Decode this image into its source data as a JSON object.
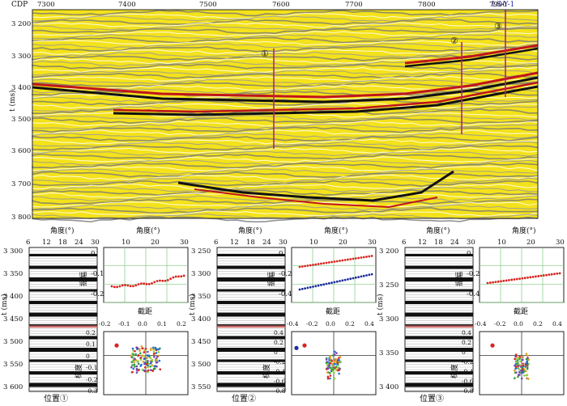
{
  "seismic": {
    "cdp_label": "CDP",
    "cdp_ticks": [
      "7300",
      "7400",
      "7500",
      "7600",
      "7700",
      "7800",
      "7900"
    ],
    "well_label": "LS-Y-1",
    "time_axis_label": "t (ms)",
    "time_ticks": [
      "3 200",
      "3 300",
      "3 400",
      "3 500",
      "3 600",
      "3 700",
      "3 800"
    ],
    "markers": [
      "①",
      "②",
      "③"
    ]
  },
  "panels": [
    {
      "caption": "位置①",
      "gather": {
        "angle_label": "角度(°)",
        "angle_ticks": [
          "6",
          "12",
          "18",
          "24",
          "30"
        ],
        "time_label": "t (ms)",
        "time_ticks": [
          "3 300",
          "3 350",
          "3 400",
          "3 450",
          "3 500",
          "3 550",
          "3 600"
        ]
      },
      "avo": {
        "angle_label": "角度(°)",
        "angle_ticks": [
          "10",
          "20",
          "30"
        ],
        "amp_label": "振幅",
        "amp_ticks": [
          "0",
          "-0.1",
          "-0.2"
        ]
      },
      "cross": {
        "intercept_label": "截距",
        "x_ticks": [
          "-0.2",
          "-0.1",
          "0.0",
          "0.1",
          "0.2"
        ],
        "gradient_label": "梯度",
        "y_ticks": [
          "0.2",
          "0.1",
          "0",
          "-0.1",
          "-0.2",
          "-0.3"
        ]
      }
    },
    {
      "caption": "位置②",
      "gather": {
        "angle_label": "角度(°)",
        "angle_ticks": [
          "6",
          "12",
          "18",
          "24",
          "30"
        ],
        "time_label": "t (ms)",
        "time_ticks": [
          "3 250",
          "3 300",
          "3 350",
          "3 400",
          "3 450",
          "3 500",
          "3 550"
        ]
      },
      "avo": {
        "angle_label": "角度(°)",
        "angle_ticks": [
          "10",
          "20",
          "30"
        ],
        "amp_label": "振幅",
        "amp_ticks": [
          "0",
          "-0.2",
          "-0.4"
        ]
      },
      "cross": {
        "intercept_label": "截距",
        "x_ticks": [
          "-0.4",
          "-0.2",
          "0.0",
          "0.2",
          "0.4"
        ],
        "gradient_label": "梯度",
        "y_ticks": [
          "0.4",
          "0.2",
          "0",
          "-0.2",
          "-0.4",
          "-0.6",
          "-0.8"
        ]
      }
    },
    {
      "caption": "位置③",
      "gather": {
        "angle_label": "角度(°)",
        "angle_ticks": [
          "6",
          "12",
          "18",
          "24",
          "30"
        ],
        "time_label": "t (ms)",
        "time_ticks": [
          "3 200",
          "3 250",
          "3 300",
          "3 350",
          "3 400"
        ]
      },
      "avo": {
        "angle_label": "角度(°)",
        "angle_ticks": [
          "10",
          "20",
          "30"
        ],
        "amp_label": "振幅",
        "amp_ticks": [
          "0",
          "-0.2",
          "-0.4"
        ]
      },
      "cross": {
        "intercept_label": "截距",
        "x_ticks": [
          "-0.4",
          "-0.2",
          "0.0",
          "0.2",
          "0.4"
        ],
        "gradient_label": "梯度",
        "y_ticks": [
          "0.4",
          "0.2",
          "0",
          "-0.2",
          "-0.4",
          "-0.6",
          "-0.8"
        ]
      }
    }
  ],
  "colors": {
    "seismic_bg": "#f4e21b",
    "peak": "#c0151b",
    "trough": "#111111",
    "marker_line": "#b0247a",
    "grid": "#7fc97f",
    "avo_red": "#d8241d",
    "avo_blue": "#1d2d9c"
  }
}
